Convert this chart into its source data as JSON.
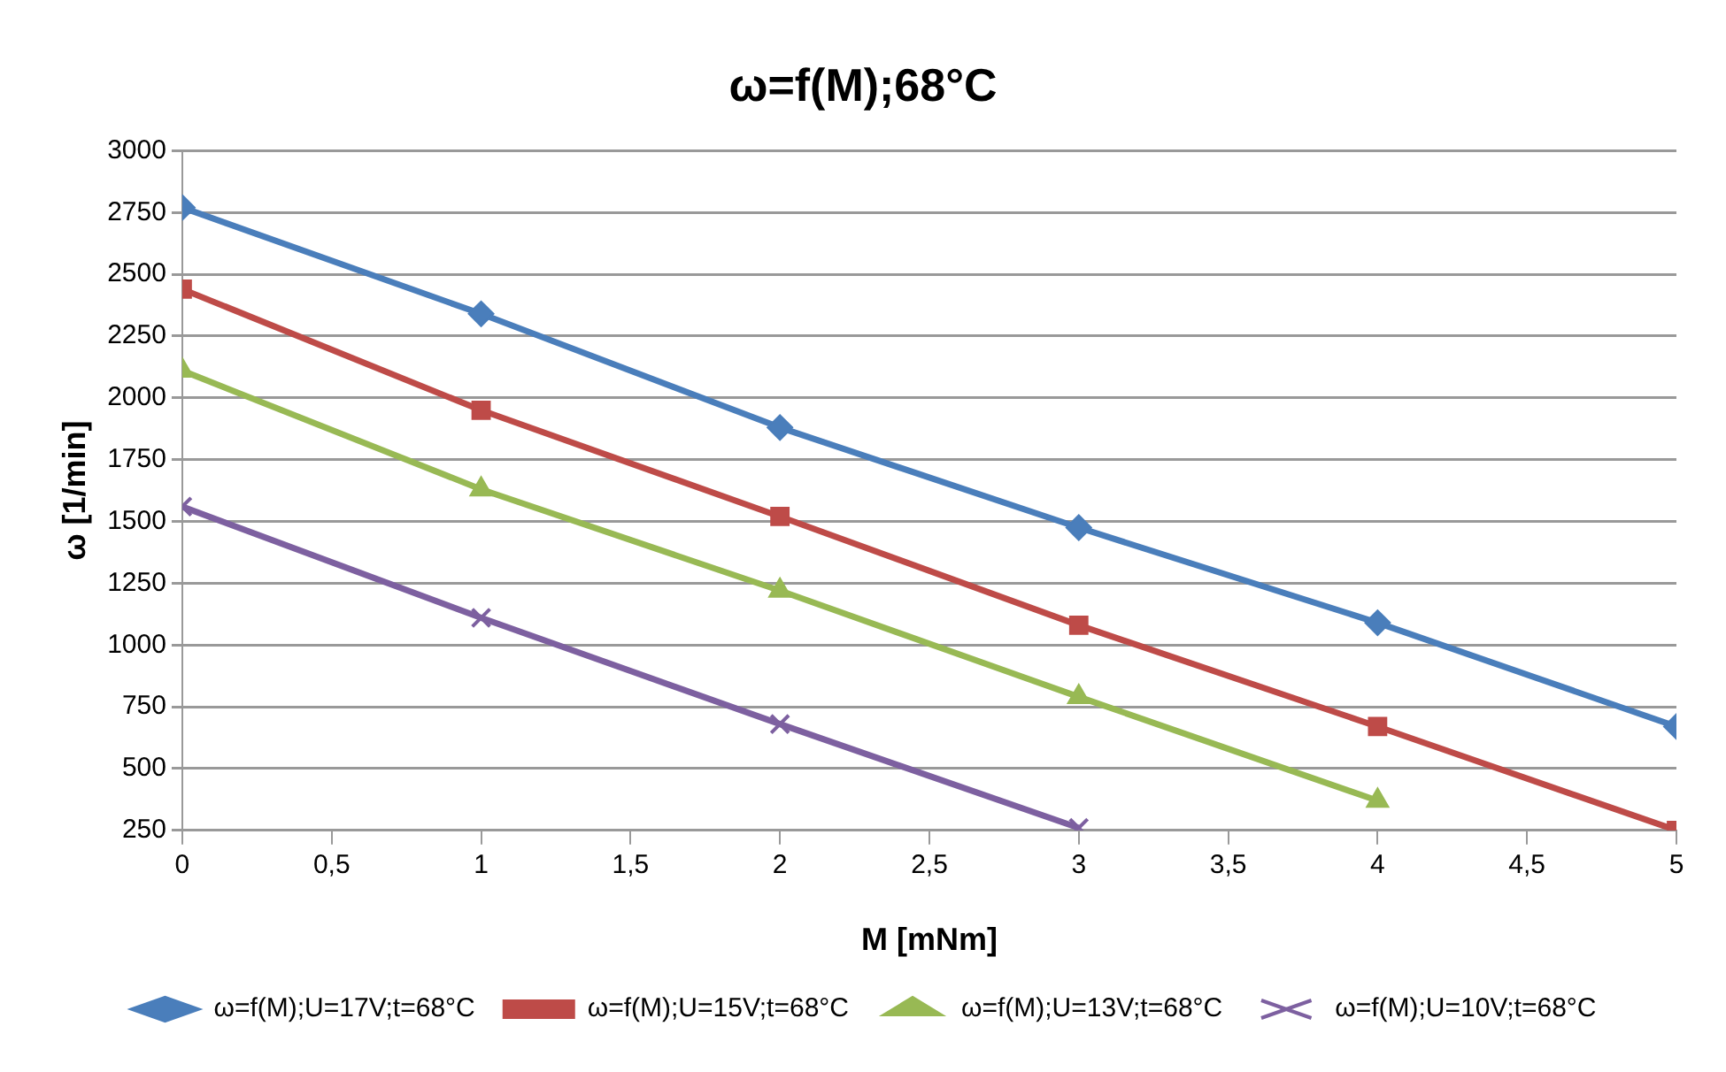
{
  "chart_data": {
    "type": "line",
    "title": "ω=f(M);68°C",
    "xlabel": "M [mNm]",
    "ylabel": "ω [1/min]",
    "x": [
      0,
      1,
      2,
      3,
      4,
      5
    ],
    "series": [
      {
        "name": "ω=f(M);U=17V;t=68°C",
        "color": "#4a7ebb",
        "marker": "diamond",
        "values": [
          2770,
          2340,
          1880,
          1475,
          1090,
          670
        ]
      },
      {
        "name": "ω=f(M);U=15V;t=68°C",
        "color": "#be4b48",
        "marker": "square",
        "values": [
          2440,
          1950,
          1520,
          1080,
          670,
          250
        ]
      },
      {
        "name": "ω=f(M);U=13V;t=68°C",
        "color": "#98b954",
        "marker": "triangle",
        "values": [
          2110,
          1630,
          1220,
          790,
          370,
          null
        ]
      },
      {
        "name": "ω=f(M);U=10V;t=68°C",
        "color": "#7d60a0",
        "marker": "cross",
        "values": [
          1560,
          1110,
          680,
          260,
          null,
          null
        ]
      }
    ],
    "xlim": [
      0,
      5
    ],
    "xticks": [
      0,
      {
        "value": 0.5,
        "label": "0,5"
      },
      1,
      {
        "value": 1.5,
        "label": "1,5"
      },
      2,
      {
        "value": 2.5,
        "label": "2,5"
      },
      3,
      {
        "value": 3.5,
        "label": "3,5"
      },
      4,
      {
        "value": 4.5,
        "label": "4,5"
      },
      5
    ],
    "ylim": [
      250,
      3000
    ],
    "yticks": [
      250,
      500,
      750,
      1000,
      1250,
      1500,
      1750,
      2000,
      2250,
      2500,
      2750,
      3000
    ],
    "grid": "y",
    "legend": "bottom",
    "line_style": "solid"
  }
}
